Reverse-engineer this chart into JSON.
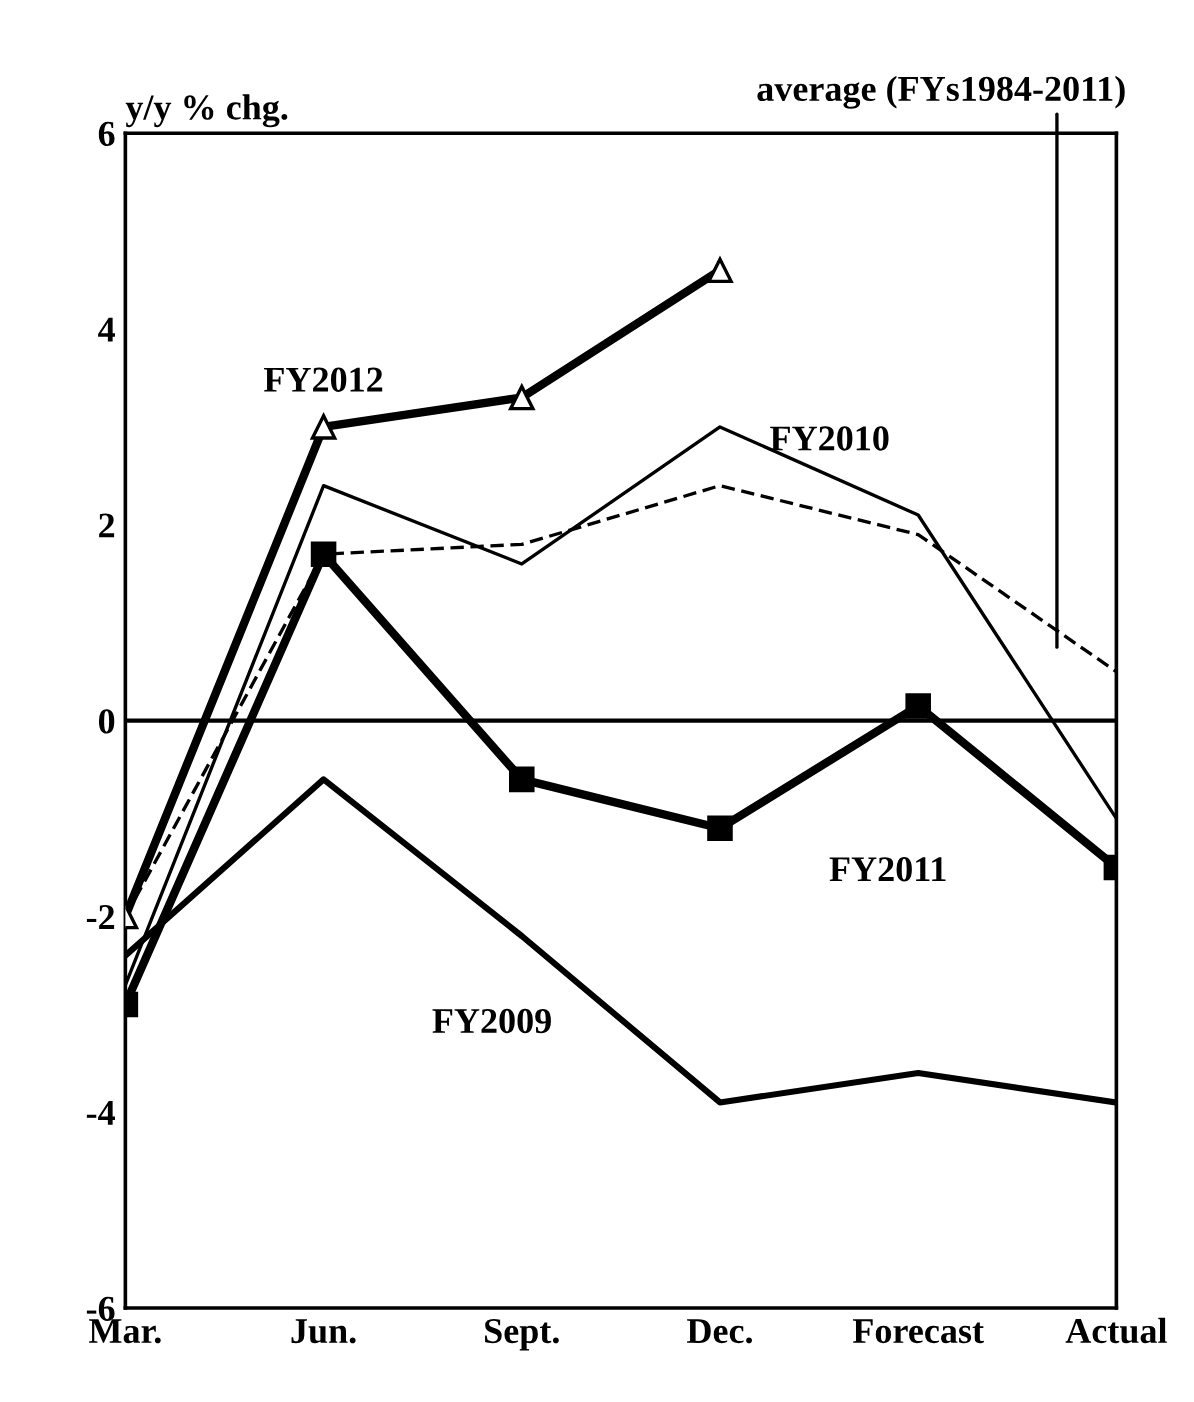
{
  "chart_data": {
    "type": "line",
    "ylabel": "y/y % chg.",
    "categories": [
      "Mar.",
      "Jun.",
      "Sept.",
      "Dec.",
      "Forecast",
      "Actual"
    ],
    "ylim": [
      -6,
      6
    ],
    "yticks": [
      -6,
      -4,
      -2,
      0,
      2,
      4,
      6
    ],
    "grid": false,
    "legend": false,
    "ref_lines": [
      {
        "axis": "y",
        "value": 0,
        "color": "#000000",
        "line_style": "solid"
      }
    ],
    "series": [
      {
        "name": "FY2012",
        "color": "#000000",
        "marker": "triangle",
        "line_style": "solid",
        "values": [
          -2.0,
          3.0,
          3.3,
          4.6,
          null,
          null
        ]
      },
      {
        "name": "FY2010",
        "color": "#000000",
        "marker": "none",
        "line_style": "solid",
        "values": [
          -2.7,
          2.4,
          1.6,
          3.0,
          2.1,
          -1.0
        ]
      },
      {
        "name": "average (FYs1984-2011)",
        "color": "#000000",
        "marker": "none",
        "line_style": "dashed",
        "values": [
          -2.0,
          1.7,
          1.8,
          2.4,
          1.9,
          0.5
        ]
      },
      {
        "name": "FY2011",
        "color": "#000000",
        "marker": "square",
        "line_style": "solid",
        "values": [
          -2.9,
          1.7,
          -0.6,
          -1.1,
          0.15,
          -1.5
        ]
      },
      {
        "name": "FY2009",
        "color": "#000000",
        "marker": "none",
        "line_style": "solid",
        "values": [
          -2.4,
          -0.6,
          -2.2,
          -3.9,
          -3.6,
          -3.9
        ]
      }
    ]
  }
}
